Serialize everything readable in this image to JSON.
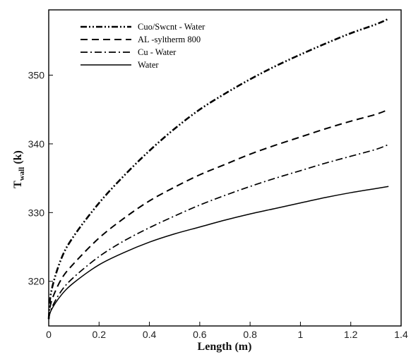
{
  "chart_data": {
    "type": "line",
    "title": "",
    "xlabel": "Length (m)",
    "ylabel": {
      "main": "T",
      "subscript": "wall",
      "suffix": " (k)"
    },
    "xlim": [
      0,
      1.4
    ],
    "ylim": [
      313.5,
      359.5
    ],
    "xticks": [
      "0",
      "0.2",
      "0.4",
      "0.6",
      "0.8",
      "1",
      "1.2",
      "1.4"
    ],
    "yticks": [
      "320",
      "330",
      "340",
      "350"
    ],
    "grid": false,
    "legend_position": "top-left",
    "series": [
      {
        "name": "Cuo/Swcnt - Water",
        "line_style": "dash-dot-dot",
        "x": [
          0,
          0.01,
          0.05,
          0.1,
          0.2,
          0.3,
          0.4,
          0.5,
          0.6,
          0.7,
          0.8,
          0.9,
          1.0,
          1.1,
          1.2,
          1.3,
          1.35
        ],
        "y": [
          314.5,
          318.5,
          323.3,
          326.6,
          331.4,
          335.4,
          339.0,
          342.2,
          345.0,
          347.3,
          349.4,
          351.3,
          353.0,
          354.6,
          356.1,
          357.4,
          358.2
        ]
      },
      {
        "name": "AL -syltherm 800",
        "line_style": "dashed",
        "x": [
          0,
          0.01,
          0.05,
          0.1,
          0.2,
          0.3,
          0.4,
          0.5,
          0.6,
          0.7,
          0.8,
          0.9,
          1.0,
          1.1,
          1.2,
          1.3,
          1.35
        ],
        "y": [
          314.5,
          317.0,
          320.3,
          322.6,
          326.3,
          329.2,
          331.7,
          333.7,
          335.5,
          337.0,
          338.5,
          339.8,
          341.0,
          342.2,
          343.3,
          344.3,
          345.0
        ]
      },
      {
        "name": "Cu - Water",
        "line_style": "dash-dot",
        "x": [
          0,
          0.01,
          0.05,
          0.1,
          0.2,
          0.3,
          0.4,
          0.5,
          0.6,
          0.7,
          0.8,
          0.9,
          1.0,
          1.1,
          1.2,
          1.3,
          1.35
        ],
        "y": [
          314.5,
          316.0,
          318.6,
          320.6,
          323.6,
          325.9,
          327.8,
          329.5,
          331.1,
          332.5,
          333.8,
          335.0,
          336.1,
          337.2,
          338.2,
          339.2,
          339.9
        ]
      },
      {
        "name": "Water",
        "line_style": "solid",
        "x": [
          0,
          0.01,
          0.05,
          0.1,
          0.2,
          0.3,
          0.4,
          0.5,
          0.6,
          0.7,
          0.8,
          0.9,
          1.0,
          1.1,
          1.2,
          1.3,
          1.35
        ],
        "y": [
          314.5,
          315.8,
          318.0,
          319.8,
          322.4,
          324.2,
          325.7,
          326.9,
          327.9,
          328.9,
          329.8,
          330.6,
          331.4,
          332.2,
          332.9,
          333.5,
          333.8
        ]
      }
    ]
  }
}
